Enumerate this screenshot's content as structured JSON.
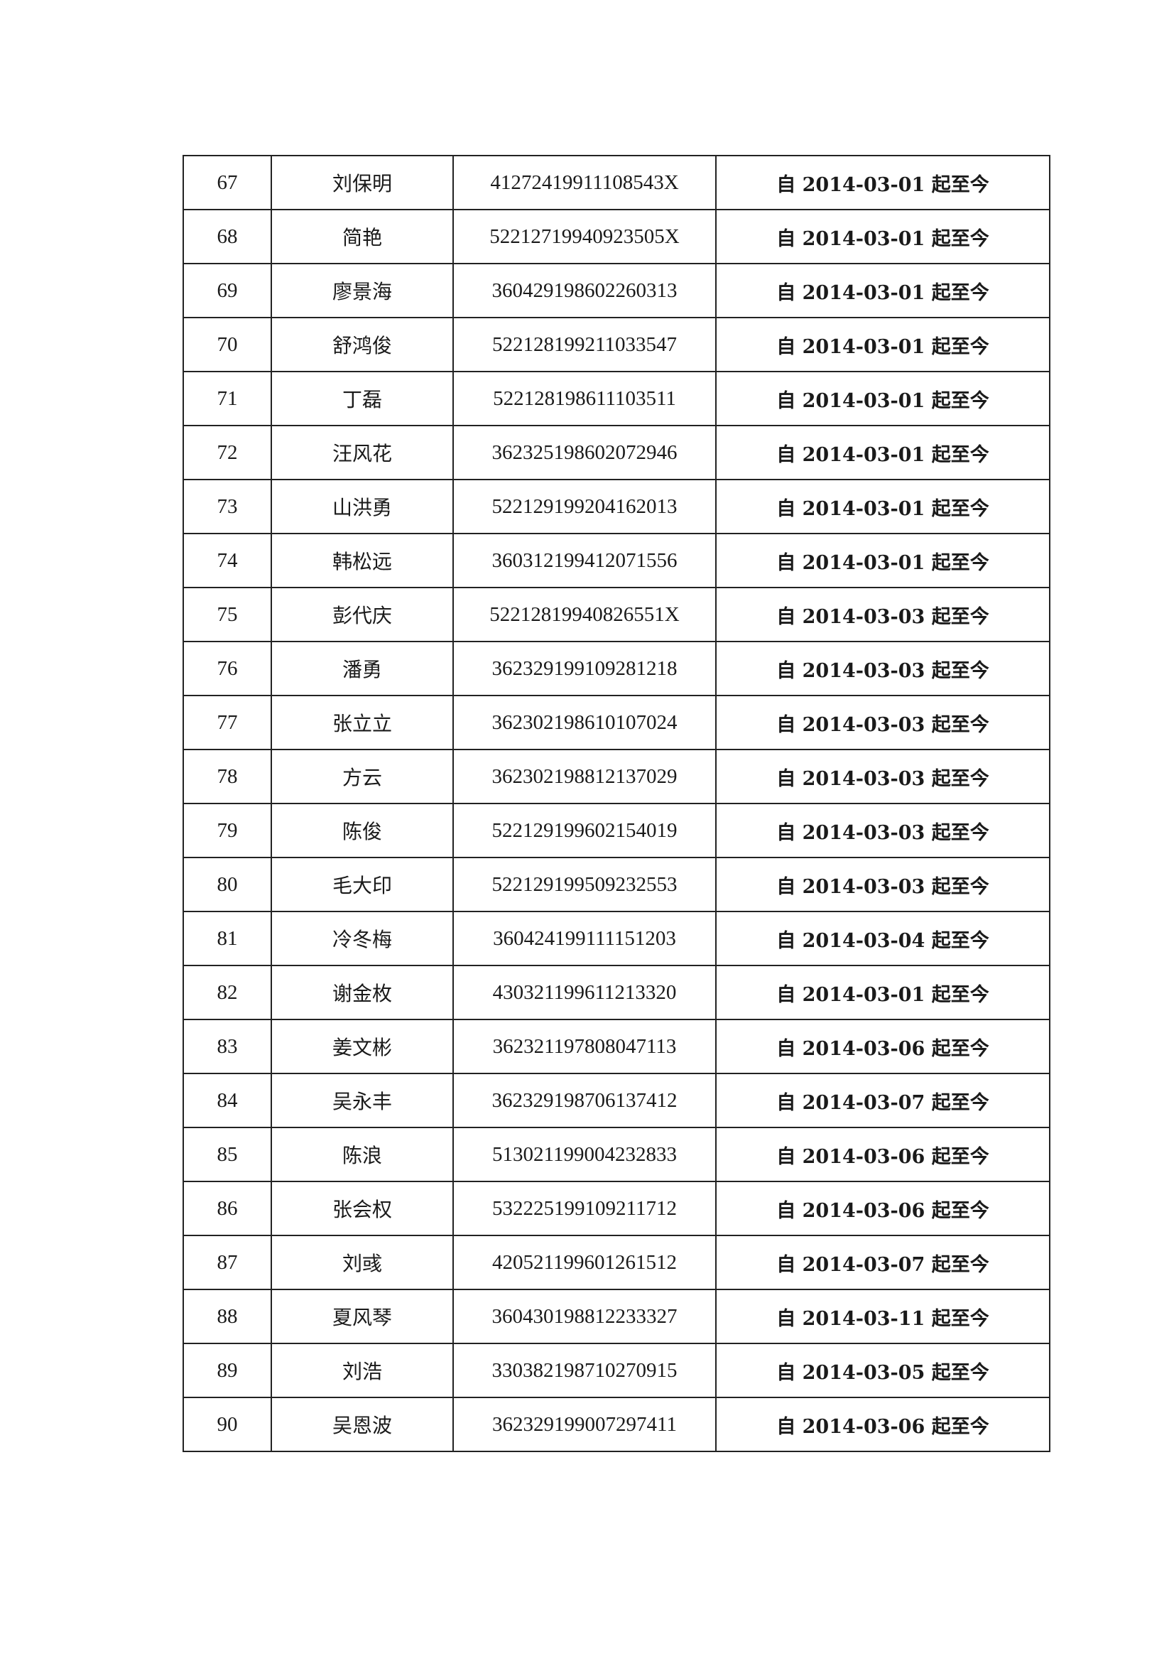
{
  "table": {
    "rows": [
      {
        "no": "67",
        "name": "刘保明",
        "id": "41272419911108543X",
        "period": "自 2014-03-01 起至今"
      },
      {
        "no": "68",
        "name": "简艳",
        "id": "52212719940923505X",
        "period": "自 2014-03-01 起至今"
      },
      {
        "no": "69",
        "name": "廖景海",
        "id": "360429198602260313",
        "period": "自 2014-03-01 起至今"
      },
      {
        "no": "70",
        "name": "舒鸿俊",
        "id": "522128199211033547",
        "period": "自 2014-03-01 起至今"
      },
      {
        "no": "71",
        "name": "丁磊",
        "id": "522128198611103511",
        "period": "自 2014-03-01 起至今"
      },
      {
        "no": "72",
        "name": "汪风花",
        "id": "362325198602072946",
        "period": "自 2014-03-01 起至今"
      },
      {
        "no": "73",
        "name": "山洪勇",
        "id": "522129199204162013",
        "period": "自 2014-03-01 起至今"
      },
      {
        "no": "74",
        "name": "韩松远",
        "id": "360312199412071556",
        "period": "自 2014-03-01 起至今"
      },
      {
        "no": "75",
        "name": "彭代庆",
        "id": "52212819940826551X",
        "period": "自 2014-03-03 起至今"
      },
      {
        "no": "76",
        "name": "潘勇",
        "id": "362329199109281218",
        "period": "自 2014-03-03 起至今"
      },
      {
        "no": "77",
        "name": "张立立",
        "id": "362302198610107024",
        "period": "自 2014-03-03 起至今"
      },
      {
        "no": "78",
        "name": "方云",
        "id": "362302198812137029",
        "period": "自 2014-03-03 起至今"
      },
      {
        "no": "79",
        "name": "陈俊",
        "id": "522129199602154019",
        "period": "自 2014-03-03 起至今"
      },
      {
        "no": "80",
        "name": "毛大印",
        "id": "522129199509232553",
        "period": "自 2014-03-03 起至今"
      },
      {
        "no": "81",
        "name": "冷冬梅",
        "id": "360424199111151203",
        "period": "自 2014-03-04 起至今"
      },
      {
        "no": "82",
        "name": "谢金枚",
        "id": "430321199611213320",
        "period": "自 2014-03-01 起至今"
      },
      {
        "no": "83",
        "name": "姜文彬",
        "id": "362321197808047113",
        "period": "自 2014-03-06 起至今"
      },
      {
        "no": "84",
        "name": "吴永丰",
        "id": "362329198706137412",
        "period": "自 2014-03-07 起至今"
      },
      {
        "no": "85",
        "name": "陈浪",
        "id": "513021199004232833",
        "period": "自 2014-03-06 起至今"
      },
      {
        "no": "86",
        "name": "张会权",
        "id": "532225199109211712",
        "period": "自 2014-03-06 起至今"
      },
      {
        "no": "87",
        "name": "刘彧",
        "id": "420521199601261512",
        "period": "自 2014-03-07 起至今"
      },
      {
        "no": "88",
        "name": "夏风琴",
        "id": "360430198812233327",
        "period": "自 2014-03-11 起至今"
      },
      {
        "no": "89",
        "name": "刘浩",
        "id": "330382198710270915",
        "period": "自 2014-03-05 起至今"
      },
      {
        "no": "90",
        "name": "吴恩波",
        "id": "362329199007297411",
        "period": "自 2014-03-06 起至今"
      }
    ]
  }
}
